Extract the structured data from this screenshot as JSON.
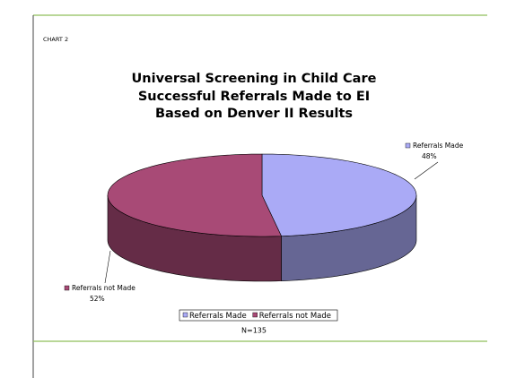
{
  "chart_label": "CHART 2",
  "chart_data": {
    "type": "pie",
    "title": [
      "Universal Screening in Child Care",
      "Successful Referrals Made to EI",
      "Based on Denver II Results"
    ],
    "categories": [
      "Referrals Made",
      "Referrals not Made"
    ],
    "values": [
      48,
      52
    ],
    "value_labels": [
      "48%",
      "52%"
    ],
    "colors": [
      "#aaaaf6",
      "#a84a76"
    ],
    "legend": "bottom",
    "annotation": "N=135"
  }
}
